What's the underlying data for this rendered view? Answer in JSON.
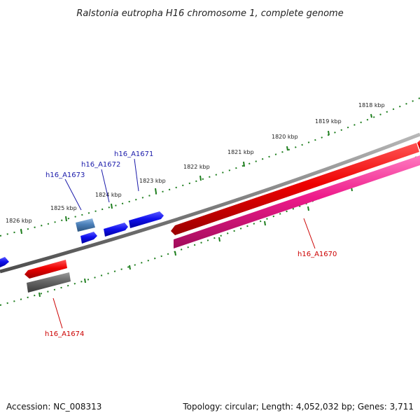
{
  "title": "Ralstonia eutropha H16 chromosome 1, complete genome",
  "footer": {
    "accession": "Accession: NC_008313",
    "topology": "Topology: circular; Length: 4,052,032 bp; Genes: 3,711"
  },
  "ruler_labels": [
    "1818 kbp",
    "1819 kbp",
    "1820 kbp",
    "1821 kbp",
    "1822 kbp",
    "1823 kbp",
    "1824 kbp",
    "1825 kbp",
    "1826 kbp"
  ],
  "genes": [
    {
      "name": "h16_A1670",
      "color": "#cc0000"
    },
    {
      "name": "h16_A1671",
      "color": "#1a1aaa"
    },
    {
      "name": "h16_A1672",
      "color": "#1a1aaa"
    },
    {
      "name": "h16_A1673",
      "color": "#1a1aaa"
    },
    {
      "name": "h16_A1674",
      "color": "#cc0000"
    }
  ],
  "colors": {
    "forward_gene": "#1010ee",
    "cds_red": "#ee0000",
    "cds_pink": "#ee1a8a",
    "gray_gene": "#666666",
    "steelblue_gene": "#4a7fb8",
    "backbone": "#7f7f7f",
    "ruler": "#1e7e1e"
  }
}
